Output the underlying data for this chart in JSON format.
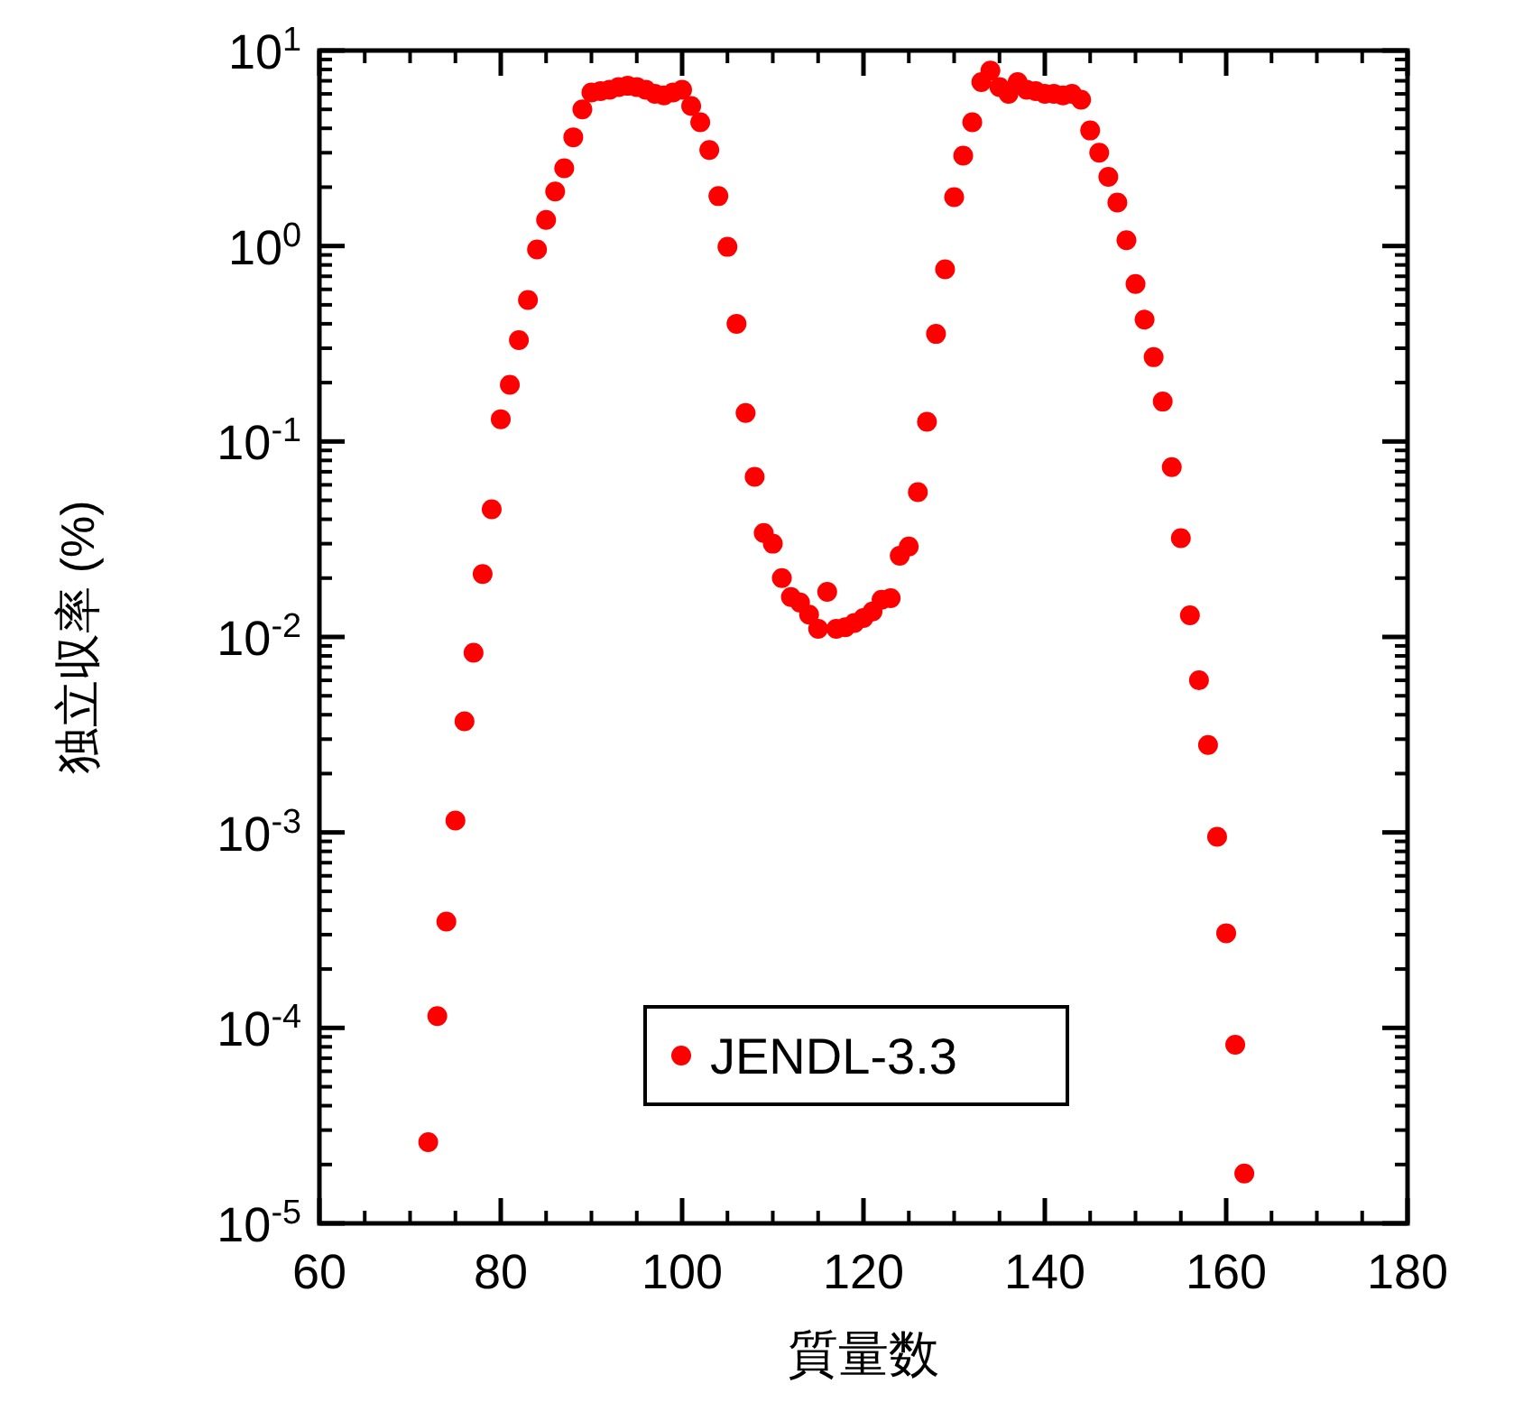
{
  "chart_data": {
    "type": "scatter",
    "xlabel": "質量数",
    "ylabel": "独立収率 (%)",
    "x": [
      72,
      73,
      74,
      75,
      76,
      77,
      78,
      79,
      80,
      81,
      82,
      83,
      84,
      85,
      86,
      87,
      88,
      89,
      90,
      91,
      92,
      93,
      94,
      95,
      96,
      97,
      98,
      99,
      100,
      101,
      102,
      103,
      104,
      105,
      106,
      107,
      108,
      109,
      110,
      111,
      112,
      113,
      114,
      115,
      116,
      117,
      118,
      119,
      120,
      121,
      122,
      123,
      124,
      125,
      126,
      127,
      128,
      129,
      130,
      131,
      132,
      133,
      134,
      135,
      136,
      137,
      138,
      139,
      140,
      141,
      142,
      143,
      144,
      145,
      146,
      147,
      148,
      149,
      150,
      151,
      152,
      153,
      154,
      155,
      156,
      157,
      158,
      159,
      160,
      161,
      162
    ],
    "series": [
      {
        "name": "JENDL-3.3",
        "color": "#ff0000",
        "values": [
          2.6e-05,
          0.000115,
          0.00035,
          0.00115,
          0.0037,
          0.0083,
          0.021,
          0.045,
          0.13,
          0.195,
          0.33,
          0.53,
          0.96,
          1.36,
          1.9,
          2.5,
          3.6,
          5.0,
          6.1,
          6.2,
          6.3,
          6.5,
          6.6,
          6.5,
          6.3,
          6.0,
          5.9,
          6.1,
          6.3,
          5.2,
          4.3,
          3.1,
          1.8,
          0.99,
          0.4,
          0.14,
          0.066,
          0.034,
          0.03,
          0.02,
          0.016,
          0.015,
          0.013,
          0.011,
          0.017,
          0.011,
          0.0112,
          0.0118,
          0.0125,
          0.0135,
          0.0155,
          0.0158,
          0.026,
          0.029,
          0.055,
          0.126,
          0.355,
          0.76,
          1.78,
          2.9,
          4.3,
          6.9,
          7.9,
          6.5,
          6.0,
          6.9,
          6.3,
          6.2,
          6.0,
          6.0,
          5.9,
          6.0,
          5.6,
          3.9,
          3.0,
          2.26,
          1.67,
          1.07,
          0.64,
          0.42,
          0.27,
          0.16,
          0.074,
          0.032,
          0.0129,
          0.006,
          0.0028,
          0.00095,
          0.000305,
          8.2e-05,
          1.8e-05
        ]
      }
    ],
    "xlim": [
      60,
      180
    ],
    "xticks": [
      60,
      80,
      100,
      120,
      140,
      160,
      180
    ],
    "ylim": [
      1e-05,
      10
    ],
    "yticks": [
      {
        "value": 1e-05,
        "label": "10$^{-5}$"
      },
      {
        "value": 0.0001,
        "label": "10$^{-4}$"
      },
      {
        "value": 0.001,
        "label": "10$^{-3}$"
      },
      {
        "value": 0.01,
        "label": "10$^{-2}$"
      },
      {
        "value": 0.1,
        "label": "10$^{-1}$"
      },
      {
        "value": 1,
        "label": "10$^{0}$"
      },
      {
        "value": 10,
        "label": "10$^{1}$"
      }
    ],
    "log": true,
    "grid": false,
    "legend": "bottom",
    "marker": "circle"
  }
}
